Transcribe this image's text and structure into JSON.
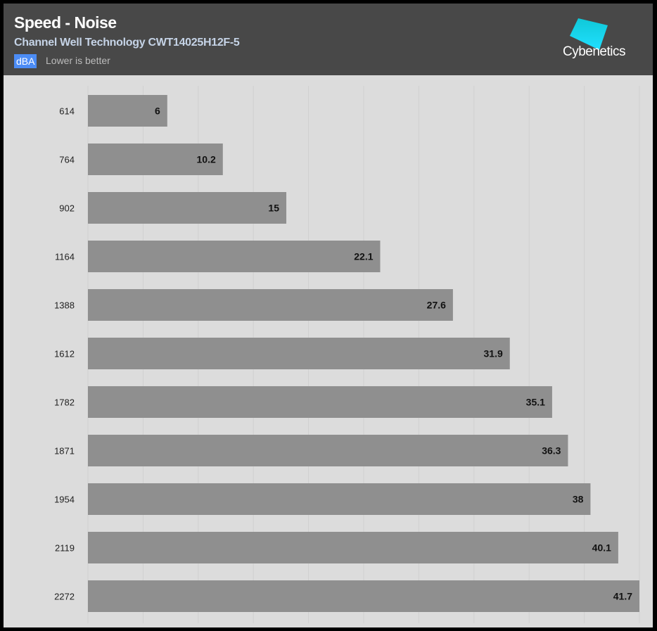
{
  "header": {
    "title": "Speed - Noise",
    "subtitle": "Channel Well Technology CWT14025H12F-5",
    "unit_badge": "dBA",
    "note": "Lower is better",
    "logo_text": "Cybenetics"
  },
  "colors": {
    "bar": "#8f8f8f",
    "header_bg": "#484848",
    "plot_bg": "#dcdcdc",
    "badge": "#4c8cf5",
    "logo": "#1ad0f0"
  },
  "chart_data": {
    "type": "bar",
    "orientation": "horizontal",
    "title": "Speed - Noise",
    "subtitle": "Channel Well Technology CWT14025H12F-5",
    "xlabel": "dBA",
    "ylabel": "",
    "categories": [
      "614",
      "764",
      "902",
      "1164",
      "1388",
      "1612",
      "1782",
      "1871",
      "1954",
      "2119",
      "2272"
    ],
    "values": [
      6,
      10.2,
      15,
      22.1,
      27.6,
      31.9,
      35.1,
      36.3,
      38,
      40.1,
      41.7
    ],
    "xlim": [
      0,
      41.7
    ],
    "grid": true,
    "grid_divisions": 10,
    "legend": "none"
  }
}
